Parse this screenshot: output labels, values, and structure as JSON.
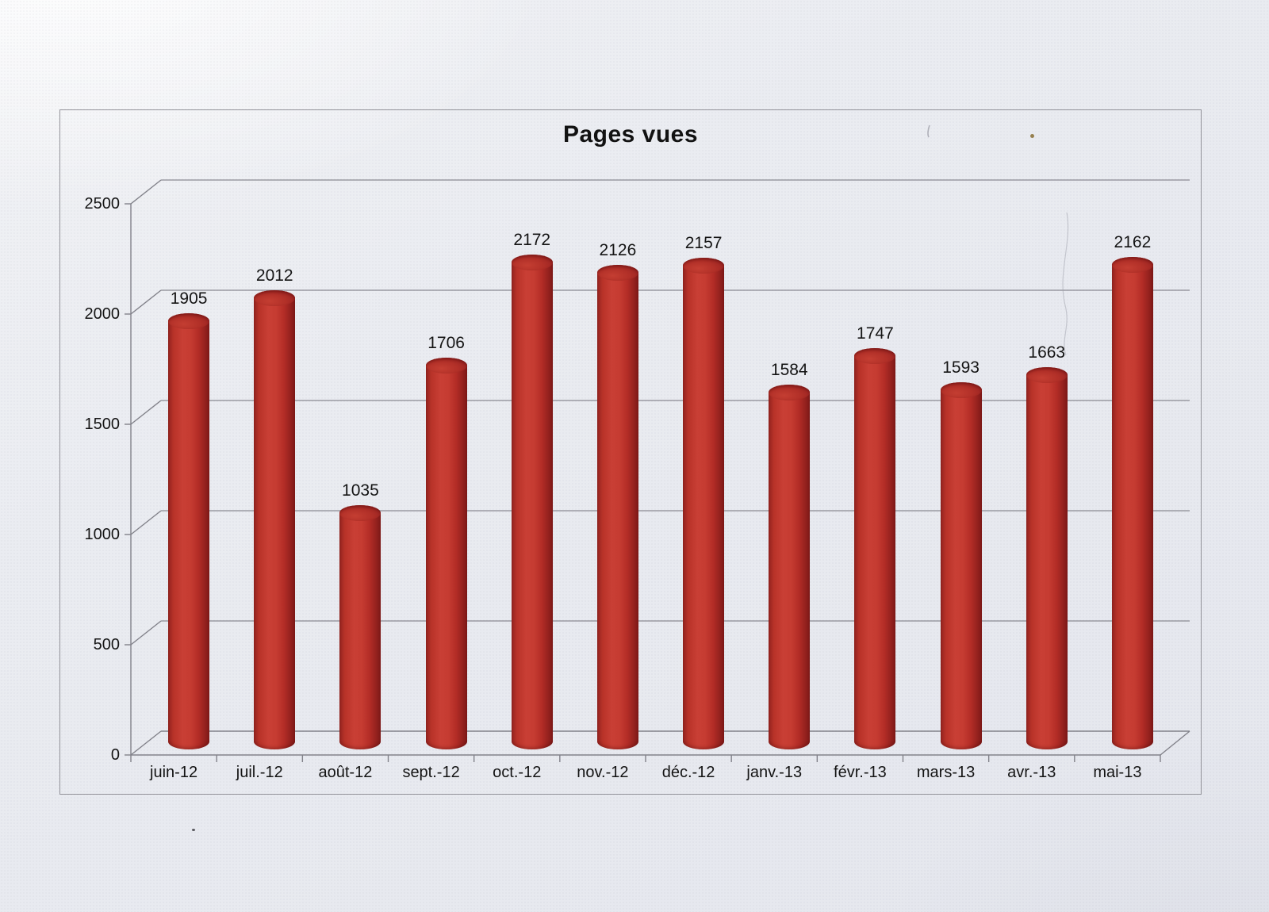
{
  "chart_data": {
    "type": "bar",
    "subtype": "3d-cylinder",
    "title": "Pages vues",
    "categories": [
      "juin-12",
      "juil.-12",
      "août-12",
      "sept.-12",
      "oct.-12",
      "nov.-12",
      "déc.-12",
      "janv.-13",
      "févr.-13",
      "mars-13",
      "avr.-13",
      "mai-13"
    ],
    "values": [
      1905,
      2012,
      1035,
      1706,
      2172,
      2126,
      2157,
      1584,
      1747,
      1593,
      1663,
      2162
    ],
    "data_labels_visible": true,
    "xlabel": "",
    "ylabel": "",
    "ylim": [
      0,
      2500
    ],
    "yticks": [
      0,
      500,
      1000,
      1500,
      2000,
      2500
    ],
    "grid": true,
    "legend": "none",
    "colors": {
      "bar_main": "#b93329",
      "bar_dark": "#841b19",
      "bar_light": "#c93f35",
      "gridline": "#8a8a92",
      "frame_border": "#93939a",
      "text": "#141414",
      "paper": "#e9ebf1"
    }
  }
}
